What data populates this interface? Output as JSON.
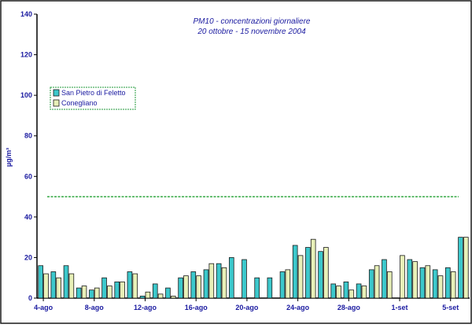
{
  "chart_data": {
    "type": "bar",
    "title": "PM10 - concentrazioni giornaliere",
    "subtitle": "20 ottobre - 15 novembre 2004",
    "ylabel": "µg/m³",
    "xlabel": "",
    "ylim": [
      0,
      140
    ],
    "yticks": [
      0,
      20,
      40,
      60,
      80,
      100,
      120,
      140
    ],
    "grid": false,
    "legend_position": "top-left",
    "x_tick_labels": [
      "4-ago",
      "8-ago",
      "12-ago",
      "16-ago",
      "20-ago",
      "24-ago",
      "28-ago",
      "1-set",
      "5-set"
    ],
    "categories": [
      "4-ago",
      "5-ago",
      "6-ago",
      "7-ago",
      "8-ago",
      "9-ago",
      "10-ago",
      "11-ago",
      "12-ago",
      "13-ago",
      "14-ago",
      "15-ago",
      "16-ago",
      "17-ago",
      "18-ago",
      "19-ago",
      "20-ago",
      "21-ago",
      "22-ago",
      "23-ago",
      "24-ago",
      "25-ago",
      "26-ago",
      "27-ago",
      "28-ago",
      "29-ago",
      "30-ago",
      "31-ago",
      "1-set",
      "2-set",
      "3-set",
      "4-set",
      "5-set",
      "6-set"
    ],
    "reference_line": {
      "value": 50,
      "color": "#22a033"
    },
    "series": [
      {
        "name": "San Pietro di Feletto",
        "color": "#3cc8cc",
        "values": [
          16,
          13,
          16,
          5,
          4,
          10,
          8,
          13,
          1,
          7,
          5,
          10,
          13,
          14,
          17,
          20,
          19,
          10,
          10,
          13,
          26,
          25,
          23,
          7,
          8,
          7,
          14,
          19,
          null,
          19,
          15,
          14,
          15,
          30
        ]
      },
      {
        "name": "Conegliano",
        "color": "#e8f0b8",
        "values": [
          12,
          10,
          12,
          6,
          5,
          6,
          8,
          12,
          3,
          2,
          1,
          11,
          11,
          17,
          15,
          null,
          null,
          null,
          null,
          14,
          21,
          29,
          25,
          6,
          4,
          6,
          16,
          13,
          21,
          18,
          16,
          11,
          13,
          30
        ]
      }
    ]
  }
}
